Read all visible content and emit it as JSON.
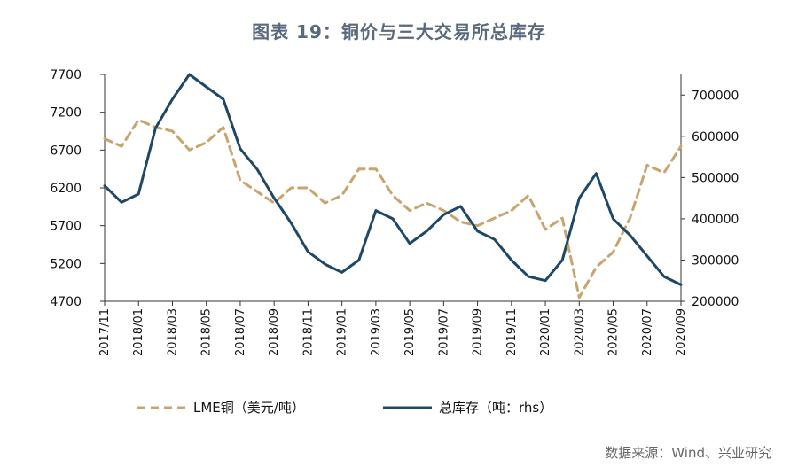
{
  "title": "图表 19：铜价与三大交易所总库存",
  "source": "数据来源：Wind、兴业研究",
  "chart_data": {
    "type": "line",
    "title": "图表 19：铜价与三大交易所总库存",
    "x": [
      "2017/11",
      "2017/12",
      "2018/01",
      "2018/02",
      "2018/03",
      "2018/04",
      "2018/05",
      "2018/06",
      "2018/07",
      "2018/08",
      "2018/09",
      "2018/10",
      "2018/11",
      "2018/12",
      "2019/01",
      "2019/02",
      "2019/03",
      "2019/04",
      "2019/05",
      "2019/06",
      "2019/07",
      "2019/08",
      "2019/09",
      "2019/10",
      "2019/11",
      "2019/12",
      "2020/01",
      "2020/02",
      "2020/03",
      "2020/04",
      "2020/05",
      "2020/06",
      "2020/07",
      "2020/08",
      "2020/09"
    ],
    "x_tick_labels": [
      "2017/11",
      "2018/01",
      "2018/03",
      "2018/05",
      "2018/07",
      "2018/09",
      "2018/11",
      "2019/01",
      "2019/03",
      "2019/05",
      "2019/07",
      "2019/09",
      "2019/11",
      "2020/01",
      "2020/03",
      "2020/05",
      "2020/07",
      "2020/09"
    ],
    "left_axis": {
      "label": "LME铜（美元/吨）",
      "ylim": [
        4700,
        7700
      ],
      "ticks": [
        4700,
        5200,
        5700,
        6200,
        6700,
        7200,
        7700
      ]
    },
    "right_axis": {
      "label": "总库存（吨：rhs）",
      "ylim": [
        200000,
        750000
      ],
      "ticks": [
        200000,
        300000,
        400000,
        500000,
        600000,
        700000
      ]
    },
    "series": [
      {
        "name": "LME铜（美元/吨）",
        "axis": "left",
        "style": "dashed",
        "color": "#c8a46e",
        "values": [
          6850,
          6750,
          7100,
          7000,
          6950,
          6700,
          6800,
          7000,
          6300,
          6150,
          6000,
          6200,
          6200,
          6000,
          6100,
          6450,
          6450,
          6100,
          5900,
          6000,
          5900,
          5750,
          5700,
          5800,
          5900,
          6100,
          5650,
          5800,
          4750,
          5150,
          5350,
          5800,
          6500,
          6400,
          6750
        ]
      },
      {
        "name": "总库存（吨：rhs）",
        "axis": "right",
        "style": "solid",
        "color": "#1f4868",
        "values": [
          480000,
          440000,
          460000,
          620000,
          690000,
          750000,
          720000,
          690000,
          570000,
          520000,
          450000,
          390000,
          320000,
          290000,
          270000,
          300000,
          420000,
          400000,
          340000,
          370000,
          410000,
          430000,
          370000,
          350000,
          300000,
          260000,
          250000,
          300000,
          450000,
          510000,
          400000,
          360000,
          310000,
          260000,
          240000
        ]
      }
    ],
    "legend": "bottom-center"
  }
}
